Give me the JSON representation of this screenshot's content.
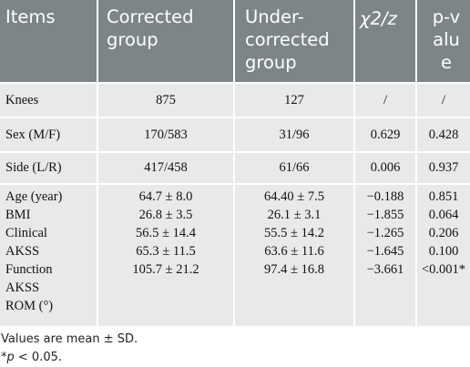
{
  "header": {
    "items": "Items",
    "corrected": "Corrected group",
    "under": "Under-corrected group",
    "stat": "χ2/z",
    "p": "p-value"
  },
  "rows": [
    {
      "label": "Knees",
      "corrected": "875",
      "under": "127",
      "stat": "/",
      "p": "/"
    },
    {
      "label": "Sex (M/F)",
      "corrected": "170/583",
      "under": "31/96",
      "stat": "0.629",
      "p": "0.428"
    },
    {
      "label": "Side (L/R)",
      "corrected": "417/458",
      "under": "61/66",
      "stat": "0.006",
      "p": "0.937"
    }
  ],
  "group": {
    "labels": [
      "Age (year)",
      "BMI",
      "Clinical",
      "AKSS",
      "Function",
      "AKSS",
      "ROM (°)"
    ],
    "corrected": [
      "64.7 ± 8.0",
      "26.8 ± 3.5",
      "56.5 ± 14.4",
      "65.3 ± 11.5",
      "105.7 ± 21.2"
    ],
    "under": [
      "64.40 ± 7.5",
      "26.1 ± 3.1",
      "55.5 ± 14.2",
      "63.6 ± 11.6",
      "97.4 ± 16.8"
    ],
    "stat": [
      "−0.188",
      "−1.855",
      "−1.265",
      "−1.645",
      "−3.661"
    ],
    "p": [
      "0.851",
      "0.064",
      "0.206",
      "0.100",
      "<0.001*"
    ]
  },
  "footnotes": {
    "note1": "Values are mean ± SD.",
    "note2_prefix": "*",
    "note2_p": "p",
    "note2_rest": " < 0.05."
  }
}
